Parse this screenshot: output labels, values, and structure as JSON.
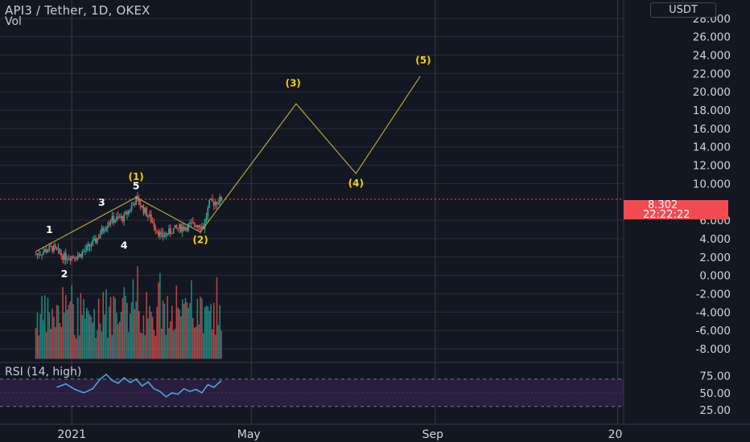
{
  "header": {
    "title": "API3 / Tether, 1D, OKEX",
    "volume_label": "Vol",
    "rsi_label": "RSI (14, high)",
    "unit": "USDT"
  },
  "last_price": {
    "value": "8.302",
    "countdown": "22:22:22"
  },
  "colors": {
    "background": "#131722",
    "up": "#26a69a",
    "down": "#ef5350",
    "rsi_line": "#4aa3df",
    "rsi_band": "#2a1e3f",
    "wave_line": "#b8a23a",
    "wave_label": "#f5d000",
    "price_flag": "#f04b50",
    "grid": "#2a2e39"
  },
  "chart_data": {
    "type": "line",
    "title": "API3 / Tether, 1D, OKEX",
    "y_ticks": [
      "28.000",
      "26.000",
      "24.000",
      "22.000",
      "20.000",
      "18.000",
      "16.000",
      "14.000",
      "12.000",
      "10.000",
      "6.000",
      "4.000",
      "2.000",
      "0.000",
      "-2.000",
      "-4.000",
      "-6.000",
      "-8.000"
    ],
    "y_tick_values": [
      28,
      26,
      24,
      22,
      20,
      18,
      16,
      14,
      12,
      10,
      6,
      4,
      2,
      0,
      -2,
      -4,
      -6,
      -8
    ],
    "ylim": [
      -9.4,
      30
    ],
    "x_ticks": [
      "2021",
      "May",
      "Sep",
      "20"
    ],
    "x_tick_days": [
      0,
      120,
      243,
      365
    ],
    "xlim": [
      -48,
      369
    ],
    "grid": true,
    "series": [
      {
        "values": [
          [
            -24,
            2.3
          ],
          [
            -13,
            3.0
          ],
          [
            -5,
            2.0
          ],
          [
            5,
            2.2
          ],
          [
            15,
            3.6
          ],
          [
            25,
            6.0
          ],
          [
            35,
            6.3
          ],
          [
            43,
            8.3
          ],
          [
            52,
            6.3
          ],
          [
            60,
            4.2
          ],
          [
            68,
            5.0
          ],
          [
            76,
            5.3
          ],
          [
            84,
            5.6
          ],
          [
            88,
            5.3
          ],
          [
            92,
            7.8
          ],
          [
            98,
            8.1
          ],
          [
            100,
            8.3
          ]
        ]
      },
      {
        "values": [
          [
            -24,
            2.6
          ],
          [
            43,
            8.5
          ],
          [
            86,
            4.7
          ],
          [
            150,
            18.7
          ],
          [
            190,
            11.1
          ],
          [
            233,
            21.7
          ]
        ]
      }
    ],
    "wave_labels": [
      {
        "text": "1",
        "x": -15,
        "y": 4.6
      },
      {
        "text": "2",
        "x": -5,
        "y": -0.2
      },
      {
        "text": "3",
        "x": 20,
        "y": 7.6
      },
      {
        "text": "4",
        "x": 35,
        "y": 2.9
      },
      {
        "text": "5",
        "x": 43,
        "y": 9.4
      },
      {
        "text": "(1)",
        "x": 43,
        "y": 10.4
      },
      {
        "text": "(2)",
        "x": 86,
        "y": 3.5
      },
      {
        "text": "(3)",
        "x": 148,
        "y": 20.6
      },
      {
        "text": "(4)",
        "x": 190,
        "y": 9.7
      },
      {
        "text": "(5)",
        "x": 235,
        "y": 23.1
      }
    ],
    "rsi": {
      "y_ticks": [
        "75.00",
        "50.00",
        "25.00"
      ],
      "y_tick_values": [
        75,
        50,
        25
      ],
      "ylim": [
        18,
        85
      ],
      "bands": [
        30,
        70
      ],
      "values": [
        [
          -10,
          58
        ],
        [
          -4,
          63
        ],
        [
          2,
          55
        ],
        [
          8,
          50
        ],
        [
          14,
          56
        ],
        [
          19,
          70
        ],
        [
          23,
          77
        ],
        [
          27,
          68
        ],
        [
          31,
          64
        ],
        [
          35,
          72
        ],
        [
          39,
          65
        ],
        [
          43,
          70
        ],
        [
          47,
          60
        ],
        [
          51,
          66
        ],
        [
          55,
          56
        ],
        [
          59,
          52
        ],
        [
          63,
          44
        ],
        [
          67,
          50
        ],
        [
          71,
          48
        ],
        [
          75,
          56
        ],
        [
          79,
          52
        ],
        [
          83,
          55
        ],
        [
          87,
          50
        ],
        [
          91,
          62
        ],
        [
          95,
          58
        ],
        [
          100,
          68
        ]
      ]
    }
  }
}
